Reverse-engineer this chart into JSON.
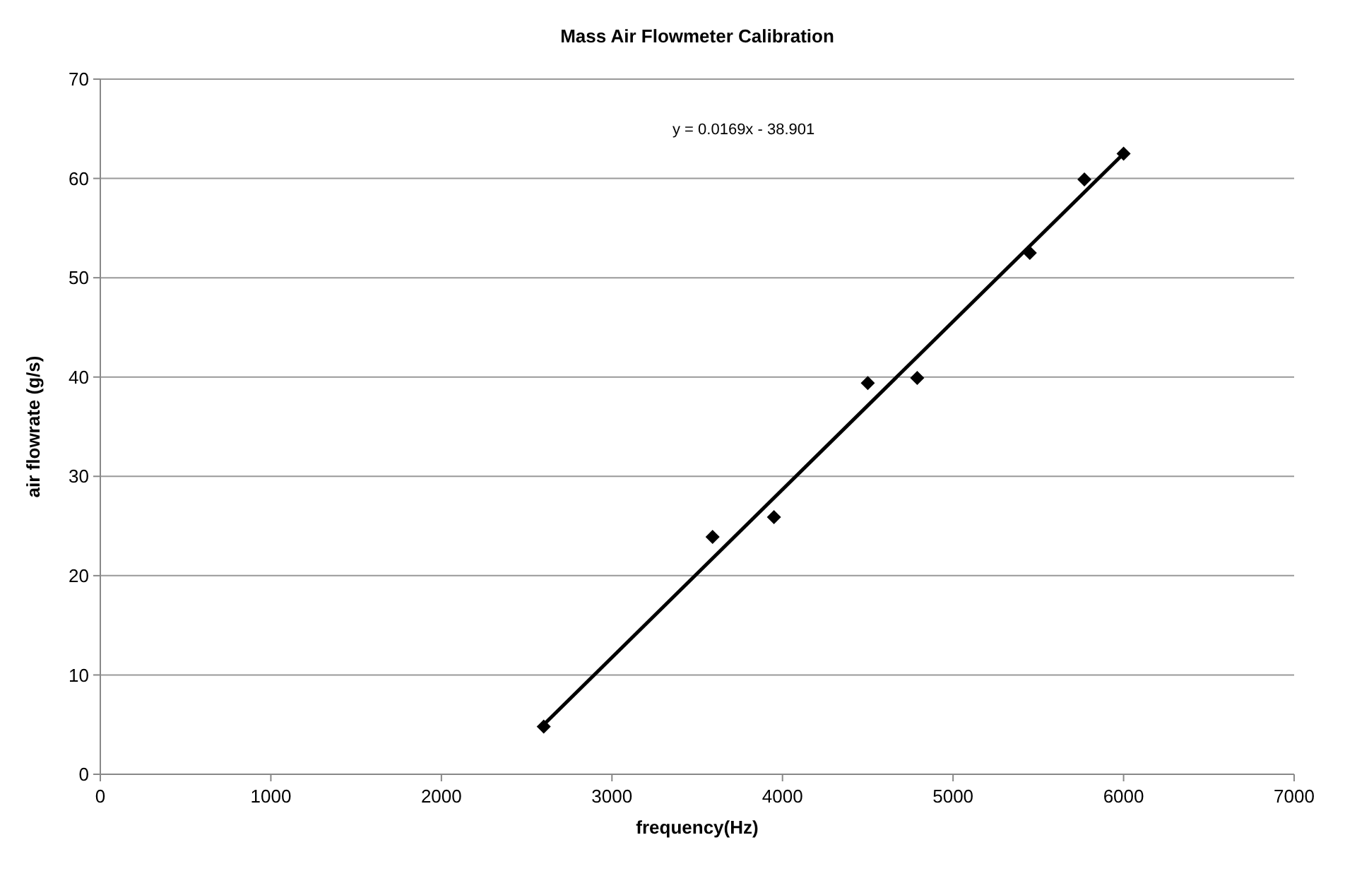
{
  "chart_data": {
    "type": "scatter",
    "title": "Mass Air Flowmeter Calibration",
    "xlabel": "frequency(Hz)",
    "ylabel": "air flowrate (g/s)",
    "annotations": [
      "y = 0.0169x - 38.901"
    ],
    "series": [
      {
        "color": "#000000",
        "marker": "diamond",
        "x": [
          2600,
          3590,
          3950,
          4500,
          4790,
          5450,
          5770,
          6000
        ],
        "values": [
          4.8,
          23.9,
          25.9,
          39.4,
          39.9,
          52.5,
          59.9,
          62.5
        ]
      },
      {
        "type": "line",
        "color": "#000000",
        "marker": "none",
        "line_style": "solid",
        "x": [
          2600,
          6000
        ],
        "values": [
          5.0,
          62.5
        ]
      }
    ],
    "xlim": [
      0,
      7000
    ],
    "xticks": [
      0,
      1000,
      2000,
      3000,
      4000,
      5000,
      6000,
      7000
    ],
    "ylim": [
      0,
      70
    ],
    "yticks": [
      0,
      10,
      20,
      30,
      40,
      50,
      60,
      70
    ],
    "grid": "y"
  }
}
